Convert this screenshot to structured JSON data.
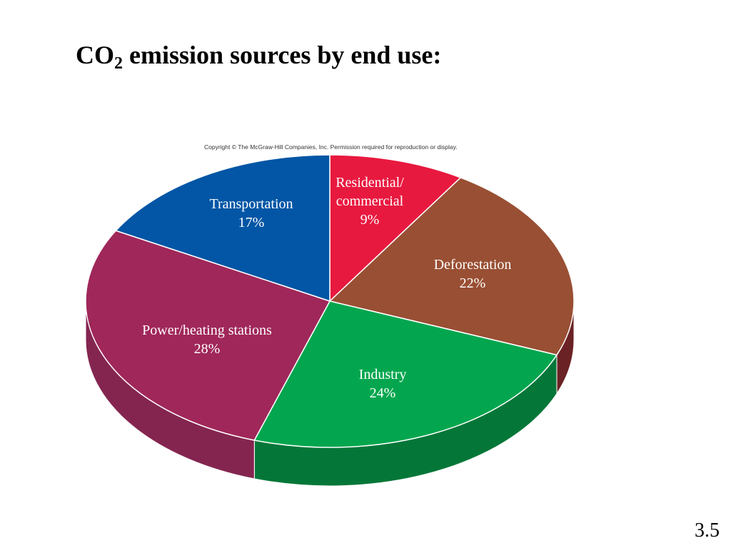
{
  "slide": {
    "title_prefix": "CO",
    "title_subscript": "2",
    "title_suffix": " emission sources by end use:",
    "copyright": "Copyright © The McGraw-Hill Companies, Inc. Permission required for reproduction or display.",
    "slide_number": "3.5"
  },
  "chart_data": {
    "type": "pie",
    "style": "3d",
    "slices": [
      {
        "name": "Residential/ commercial",
        "label_lines": [
          "Residential/",
          "commercial",
          "9%"
        ],
        "value": 9,
        "color": "#e8193f",
        "side_color": "#a01030"
      },
      {
        "name": "Deforestation",
        "label_lines": [
          "Deforestation",
          "22%"
        ],
        "value": 22,
        "color": "#994f33",
        "side_color": "#6b2225"
      },
      {
        "name": "Industry",
        "label_lines": [
          "Industry",
          "24%"
        ],
        "value": 24,
        "color": "#03a64e",
        "side_color": "#047738"
      },
      {
        "name": "Power/heating stations",
        "label_lines": [
          "Power/heating stations",
          "28%"
        ],
        "value": 28,
        "color": "#a0275a",
        "side_color": "#842550"
      },
      {
        "name": "Transportation",
        "label_lines": [
          "Transportation",
          "17%"
        ],
        "value": 17,
        "color": "#0256a5",
        "side_color": "#023f7a"
      }
    ]
  }
}
